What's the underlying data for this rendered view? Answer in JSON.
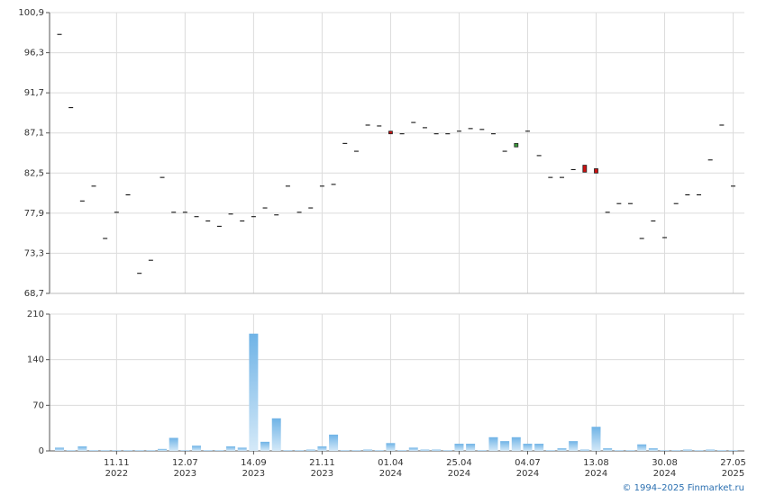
{
  "chart_data": [
    {
      "type": "candlestick",
      "open": [
        98.4,
        90.0,
        79.3,
        81.0,
        75.0,
        78.0,
        80.0,
        71.0,
        72.5,
        82.0,
        78.0,
        78.0,
        77.5,
        77.0,
        76.4,
        77.8,
        77.0,
        77.5,
        78.5,
        77.7,
        81.0,
        78.0,
        78.5,
        81.0,
        81.2,
        85.9,
        85.0,
        88.0,
        87.9,
        87.3,
        87.0,
        88.3,
        87.7,
        87.0,
        87.0,
        87.3,
        87.6,
        87.5,
        87.0,
        85.0,
        85.5,
        87.3,
        84.5,
        82.0,
        82.0,
        82.9,
        83.4,
        83.0,
        78.0,
        79.0,
        79.0,
        75.0,
        77.0,
        75.1,
        79.0,
        80.0,
        80.0,
        84.0,
        88.0,
        81.0
      ],
      "close": [
        98.4,
        90.0,
        79.3,
        81.0,
        75.0,
        78.0,
        80.0,
        71.0,
        72.5,
        82.0,
        78.0,
        78.0,
        77.5,
        77.0,
        76.4,
        77.8,
        77.0,
        77.5,
        78.5,
        77.7,
        81.0,
        78.0,
        78.5,
        81.0,
        81.2,
        85.9,
        85.0,
        88.0,
        87.9,
        87.0,
        87.0,
        88.3,
        87.7,
        87.0,
        87.0,
        87.3,
        87.6,
        87.5,
        87.0,
        85.0,
        85.9,
        87.3,
        84.5,
        82.0,
        82.0,
        82.9,
        82.6,
        82.5,
        78.0,
        79.0,
        79.0,
        75.0,
        77.0,
        75.1,
        79.0,
        80.0,
        80.0,
        84.0,
        88.0,
        81.0
      ],
      "up_color": "#3a9a3a",
      "down_color": "#cc1111",
      "flat_color": "#000000",
      "ylim": [
        68.7,
        100.9
      ],
      "yticks": [
        {
          "value": 68.7,
          "label": "68,7"
        },
        {
          "value": 73.3,
          "label": "73,3"
        },
        {
          "value": 77.9,
          "label": "77,9"
        },
        {
          "value": 82.5,
          "label": "82,5"
        },
        {
          "value": 87.1,
          "label": "87,1"
        },
        {
          "value": 91.7,
          "label": "91,7"
        },
        {
          "value": 96.3,
          "label": "96,3"
        },
        {
          "value": 100.9,
          "label": "100,9"
        }
      ],
      "grid": true
    },
    {
      "type": "bar",
      "categories": [
        null,
        null,
        null,
        null,
        null,
        [
          "11.11",
          "2022"
        ],
        null,
        null,
        null,
        null,
        null,
        [
          "12.07",
          "2023"
        ],
        null,
        null,
        null,
        null,
        null,
        [
          "14.09",
          "2023"
        ],
        null,
        null,
        null,
        null,
        null,
        [
          "21.11",
          "2023"
        ],
        null,
        null,
        null,
        null,
        null,
        [
          "01.04",
          "2024"
        ],
        null,
        null,
        null,
        null,
        null,
        [
          "25.04",
          "2024"
        ],
        null,
        null,
        null,
        null,
        null,
        [
          "04.07",
          "2024"
        ],
        null,
        null,
        null,
        null,
        null,
        [
          "13.08",
          "2024"
        ],
        null,
        null,
        null,
        null,
        null,
        [
          "30.08",
          "2024"
        ],
        null,
        null,
        null,
        null,
        null,
        [
          "27.05",
          "2025"
        ]
      ],
      "values": [
        5,
        1,
        7,
        1,
        1,
        1,
        1,
        1,
        1,
        3,
        20,
        1,
        8,
        1,
        1,
        7,
        5,
        180,
        14,
        50,
        1,
        1,
        2,
        7,
        25,
        1,
        1,
        2,
        1,
        12,
        1,
        5,
        2,
        2,
        1,
        11,
        11,
        1,
        21,
        15,
        21,
        11,
        11,
        1,
        4,
        15,
        2,
        37,
        4,
        1,
        1,
        10,
        4,
        1,
        1,
        2,
        1,
        2,
        1,
        1
      ],
      "color": "#7dbbe9",
      "ylim": [
        0,
        210
      ],
      "yticks": [
        0,
        70,
        140,
        210
      ],
      "grid": true
    }
  ],
  "footer": "© 1994–2025 Finmarket.ru"
}
